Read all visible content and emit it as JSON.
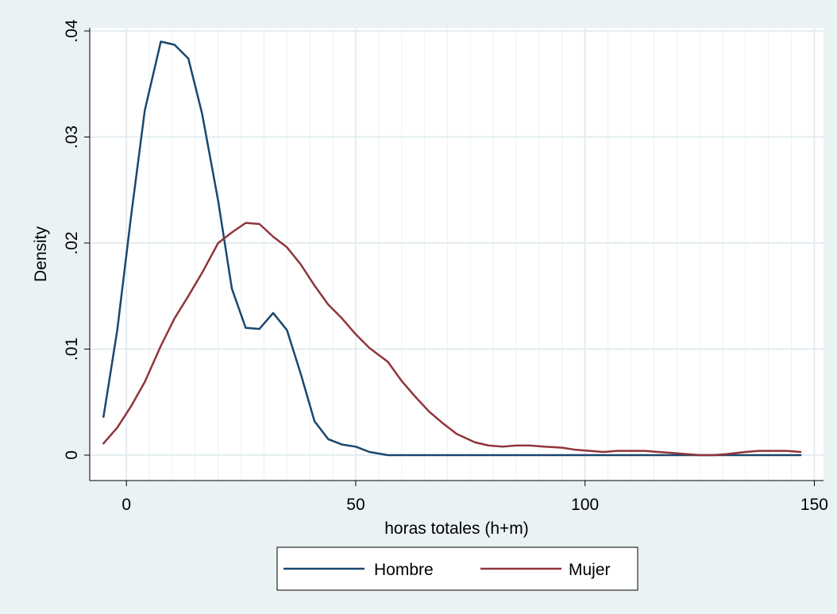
{
  "chart_data": {
    "type": "line",
    "xlabel": "horas totales (h+m)",
    "ylabel": "Density",
    "xlim": [
      -8,
      152
    ],
    "ylim": [
      -0.0024,
      0.0403
    ],
    "xticks": [
      0,
      50,
      100,
      150
    ],
    "xtick_labels": [
      "0",
      "50",
      "100",
      "150"
    ],
    "xminor": [
      5,
      10,
      15,
      20,
      25,
      30,
      35,
      40,
      45,
      55,
      60,
      65,
      70,
      75,
      80,
      85,
      90,
      95,
      105,
      110,
      115,
      120,
      125,
      130,
      135,
      140,
      145
    ],
    "yticks": [
      0,
      0.01,
      0.02,
      0.03,
      0.04
    ],
    "ytick_labels": [
      "0",
      ".01",
      ".02",
      ".03",
      ".04"
    ],
    "grid": true,
    "legend_position": "bottom",
    "series": [
      {
        "name": "Hombre",
        "color": "#1a476f",
        "x": [
          -5,
          -2,
          1,
          4,
          7.5,
          10.5,
          13.5,
          16.5,
          20,
          23,
          26,
          29,
          32,
          35,
          38,
          41,
          44,
          47,
          50,
          53,
          57,
          60,
          70,
          80,
          90,
          100,
          110,
          120,
          130,
          140,
          147
        ],
        "y": [
          0.0036,
          0.0118,
          0.0225,
          0.0325,
          0.039,
          0.0387,
          0.0374,
          0.0322,
          0.024,
          0.0157,
          0.012,
          0.0119,
          0.0134,
          0.0118,
          0.0077,
          0.0032,
          0.0015,
          0.001,
          0.0008,
          0.0003,
          0,
          0,
          0,
          0,
          0,
          0,
          0,
          0,
          0,
          0,
          0
        ]
      },
      {
        "name": "Mujer",
        "color": "#90353b",
        "x": [
          -5,
          -2,
          1,
          4,
          7.5,
          10.5,
          13.5,
          16.5,
          20,
          23,
          26,
          29,
          32,
          35,
          38,
          41,
          44,
          47,
          50,
          53,
          57,
          60,
          63,
          66,
          69,
          72,
          76,
          79,
          82,
          85,
          88,
          91,
          95,
          98,
          101,
          104,
          107,
          110,
          113,
          116,
          119,
          122,
          125,
          128,
          131,
          135,
          138,
          141,
          144,
          147
        ],
        "y": [
          0.0011,
          0.0026,
          0.0046,
          0.0069,
          0.0103,
          0.0129,
          0.015,
          0.0172,
          0.02,
          0.021,
          0.0219,
          0.0218,
          0.0206,
          0.0196,
          0.018,
          0.016,
          0.0142,
          0.0129,
          0.0114,
          0.0101,
          0.0088,
          0.007,
          0.0055,
          0.0041,
          0.003,
          0.002,
          0.0012,
          0.0009,
          0.0008,
          0.0009,
          0.0009,
          0.0008,
          0.0007,
          0.0005,
          0.0004,
          0.0003,
          0.0004,
          0.0004,
          0.0004,
          0.0003,
          0.0002,
          0.0001,
          0,
          0,
          0.0001,
          0.0003,
          0.0004,
          0.0004,
          0.0004,
          0.0003
        ]
      }
    ]
  }
}
